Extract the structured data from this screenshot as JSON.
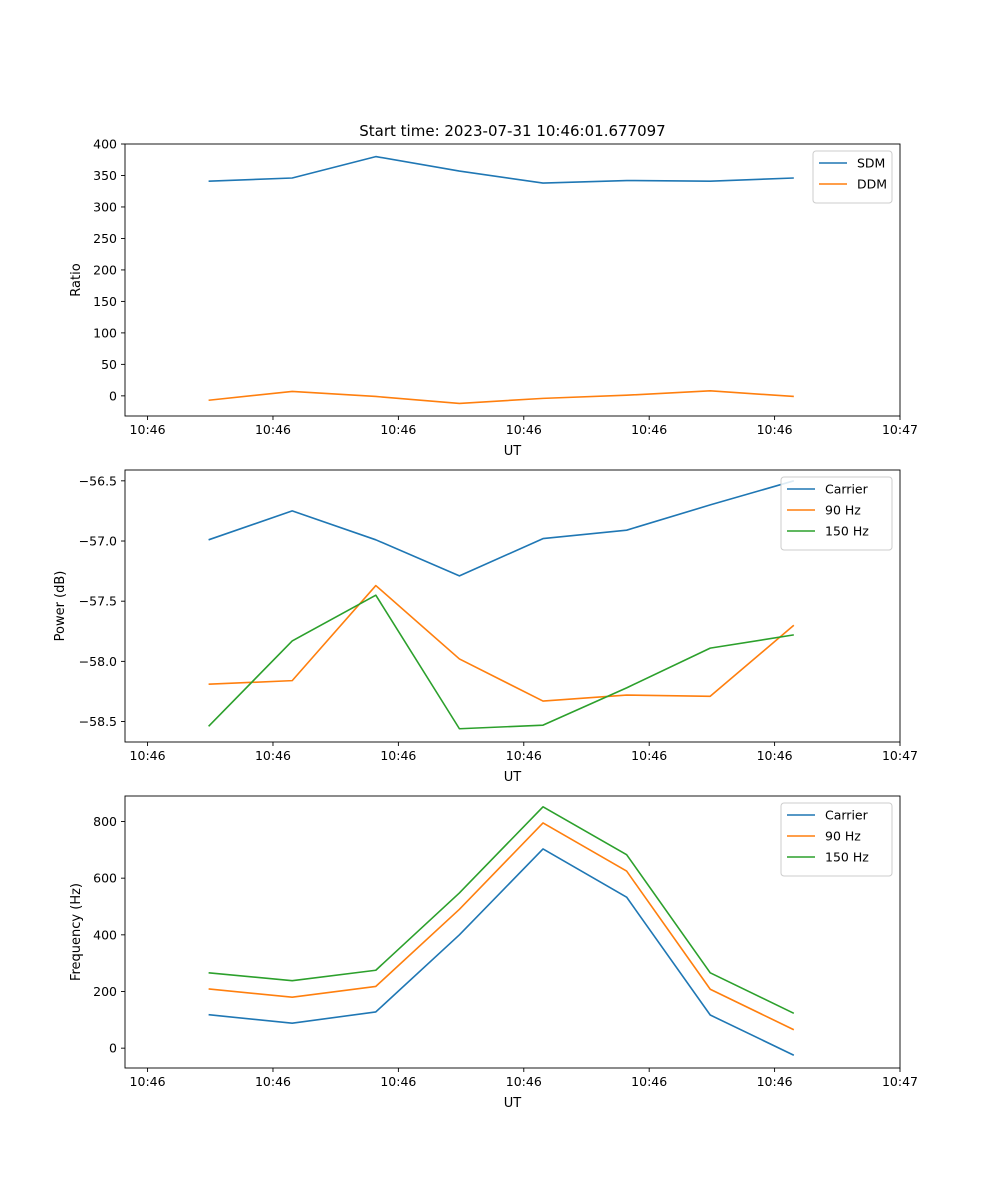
{
  "figure_title": "Start time: 2023-07-31 10:46:01.677097",
  "colors": {
    "blue": "#1f77b4",
    "orange": "#ff7f0e",
    "green": "#2ca02c"
  },
  "chart_data": [
    {
      "type": "line",
      "title": "Start time: 2023-07-31 10:46:01.677097",
      "xlabel": "UT",
      "ylabel": "Ratio",
      "x": [
        1,
        2,
        3,
        4,
        5,
        6,
        7,
        8
      ],
      "xlim": [
        0,
        9.27
      ],
      "xticks": [
        0.27,
        1.77,
        3.27,
        4.77,
        6.27,
        7.77,
        9.27
      ],
      "xtick_labels": [
        "10:46",
        "10:46",
        "10:46",
        "10:46",
        "10:46",
        "10:46",
        "10:47"
      ],
      "ylim": [
        -32,
        400
      ],
      "yticks": [
        0,
        50,
        100,
        150,
        200,
        250,
        300,
        350,
        400
      ],
      "ytick_labels": [
        "0",
        "50",
        "100",
        "150",
        "200",
        "250",
        "300",
        "350",
        "400"
      ],
      "legend": "top-right",
      "series": [
        {
          "name": "SDM",
          "color": "#1f77b4",
          "values": [
            341,
            346,
            380,
            357,
            338,
            342,
            341,
            346
          ]
        },
        {
          "name": "DDM",
          "color": "#ff7f0e",
          "values": [
            -7,
            7,
            -1,
            -12,
            -4,
            1,
            8,
            -1
          ]
        }
      ]
    },
    {
      "type": "line",
      "title": "",
      "xlabel": "UT",
      "ylabel": "Power (dB)",
      "x": [
        1,
        2,
        3,
        4,
        5,
        6,
        7,
        8
      ],
      "xlim": [
        0,
        9.27
      ],
      "xticks": [
        0.27,
        1.77,
        3.27,
        4.77,
        6.27,
        7.77,
        9.27
      ],
      "xtick_labels": [
        "10:46",
        "10:46",
        "10:46",
        "10:46",
        "10:46",
        "10:46",
        "10:47"
      ],
      "ylim": [
        -58.67,
        -56.41
      ],
      "yticks": [
        -58.5,
        -58.0,
        -57.5,
        -57.0,
        -56.5
      ],
      "ytick_labels": [
        "−58.5",
        "−58.0",
        "−57.5",
        "−57.0",
        "−56.5"
      ],
      "legend": "top-right",
      "series": [
        {
          "name": "Carrier",
          "color": "#1f77b4",
          "values": [
            -56.99,
            -56.75,
            -56.99,
            -57.29,
            -56.98,
            -56.91,
            -56.7,
            -56.5
          ]
        },
        {
          "name": "90 Hz",
          "color": "#ff7f0e",
          "values": [
            -58.19,
            -58.16,
            -57.37,
            -57.98,
            -58.33,
            -58.28,
            -58.29,
            -57.7
          ]
        },
        {
          "name": "150 Hz",
          "color": "#2ca02c",
          "values": [
            -58.54,
            -57.83,
            -57.45,
            -58.56,
            -58.53,
            -58.22,
            -57.89,
            -57.78
          ]
        }
      ]
    },
    {
      "type": "line",
      "title": "",
      "xlabel": "UT",
      "ylabel": "Frequency (Hz)",
      "x": [
        1,
        2,
        3,
        4,
        5,
        6,
        7,
        8
      ],
      "xlim": [
        0,
        9.27
      ],
      "xticks": [
        0.27,
        1.77,
        3.27,
        4.77,
        6.27,
        7.77,
        9.27
      ],
      "xtick_labels": [
        "10:46",
        "10:46",
        "10:46",
        "10:46",
        "10:46",
        "10:46",
        "10:47"
      ],
      "ylim": [
        -70,
        890
      ],
      "yticks": [
        0,
        200,
        400,
        600,
        800
      ],
      "ytick_labels": [
        "0",
        "200",
        "400",
        "600",
        "800"
      ],
      "legend": "top-right",
      "series": [
        {
          "name": "Carrier",
          "color": "#1f77b4",
          "values": [
            118,
            88,
            128,
            400,
            703,
            533,
            117,
            -25
          ]
        },
        {
          "name": "90 Hz",
          "color": "#ff7f0e",
          "values": [
            209,
            180,
            218,
            490,
            795,
            625,
            208,
            65
          ]
        },
        {
          "name": "150 Hz",
          "color": "#2ca02c",
          "values": [
            266,
            238,
            275,
            548,
            852,
            683,
            266,
            123
          ]
        }
      ]
    }
  ]
}
